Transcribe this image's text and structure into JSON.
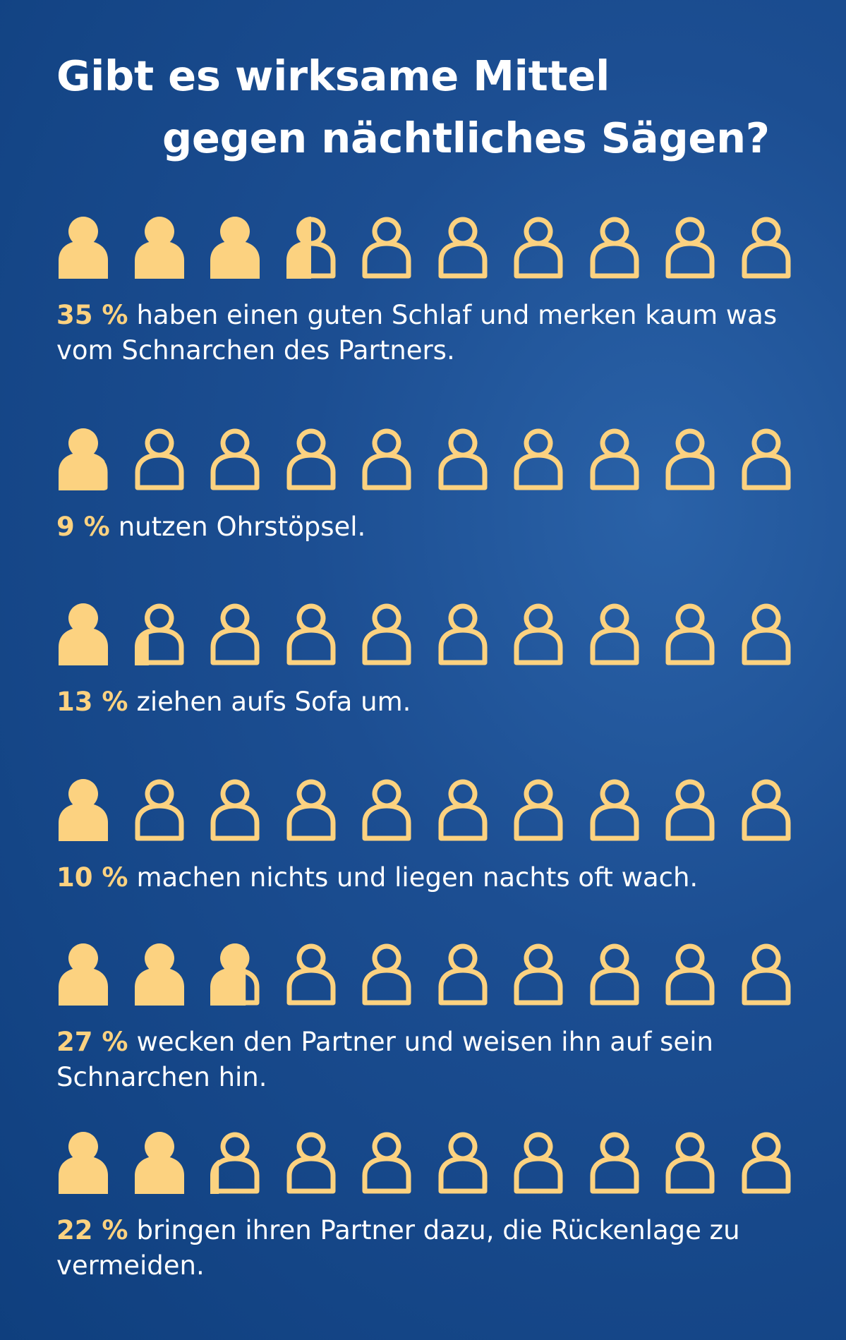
{
  "title_line1": "Gibt es wirksame Mittel",
  "title_line2": "gegen nächtliches Sägen?",
  "colors": {
    "background": "#1a4c8f",
    "accent": "#fcd280",
    "text": "#ffffff"
  },
  "chart_data": {
    "type": "pictogram",
    "title": "Gibt es wirksame Mittel gegen nächtliches Sägen?",
    "icon": "person-icon",
    "icons_per_row": 10,
    "percent_per_icon": 10,
    "rows": [
      {
        "value": 35,
        "percent_label": "35 %",
        "text": "haben einen guten Schlaf und merken kaum was vom Schnarchen des Partners."
      },
      {
        "value": 9,
        "percent_label": "9 %",
        "text": "nutzen Ohrstöpsel."
      },
      {
        "value": 13,
        "percent_label": "13 %",
        "text": "ziehen aufs Sofa um."
      },
      {
        "value": 10,
        "percent_label": "10 %",
        "text": "machen nichts und liegen nachts oft wach."
      },
      {
        "value": 27,
        "percent_label": "27 %",
        "text": "wecken den Partner und weisen ihn auf sein Schnarchen hin."
      },
      {
        "value": 22,
        "percent_label": "22 %",
        "text": "bringen ihren Partner dazu, die Rückenlage zu vermeiden."
      }
    ]
  }
}
